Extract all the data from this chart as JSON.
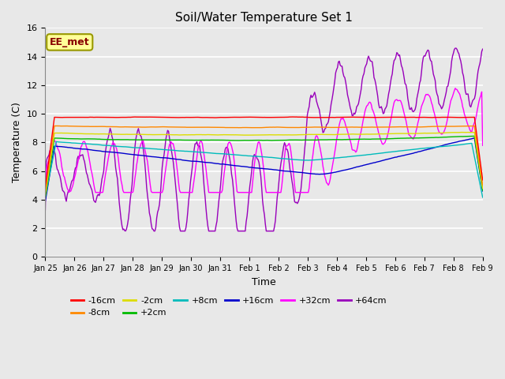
{
  "title": "Soil/Water Temperature Set 1",
  "xlabel": "Time",
  "ylabel": "Temperature (C)",
  "ylim": [
    0,
    16
  ],
  "yticks": [
    0,
    2,
    4,
    6,
    8,
    10,
    12,
    14,
    16
  ],
  "plot_bg_color": "#e8e8e8",
  "annotation_text": "EE_met",
  "annotation_bg": "#ffff99",
  "annotation_border": "#999900",
  "series": [
    {
      "label": "-16cm",
      "color": "#ff0000"
    },
    {
      "label": "-8cm",
      "color": "#ff8800"
    },
    {
      "label": "-2cm",
      "color": "#dddd00"
    },
    {
      "label": "+2cm",
      "color": "#00bb00"
    },
    {
      "label": "+8cm",
      "color": "#00bbbb"
    },
    {
      "label": "+16cm",
      "color": "#0000cc"
    },
    {
      "label": "+32cm",
      "color": "#ff00ff"
    },
    {
      "label": "+64cm",
      "color": "#9900bb"
    }
  ],
  "xtick_labels": [
    "Jan 25",
    "Jan 26",
    "Jan 27",
    "Jan 28",
    "Jan 29",
    "Jan 30",
    "Jan 31",
    "Feb 1",
    "Feb 2",
    "Feb 3",
    "Feb 4",
    "Feb 5",
    "Feb 6",
    "Feb 7",
    "Feb 8",
    "Feb 9"
  ],
  "n_points": 480
}
